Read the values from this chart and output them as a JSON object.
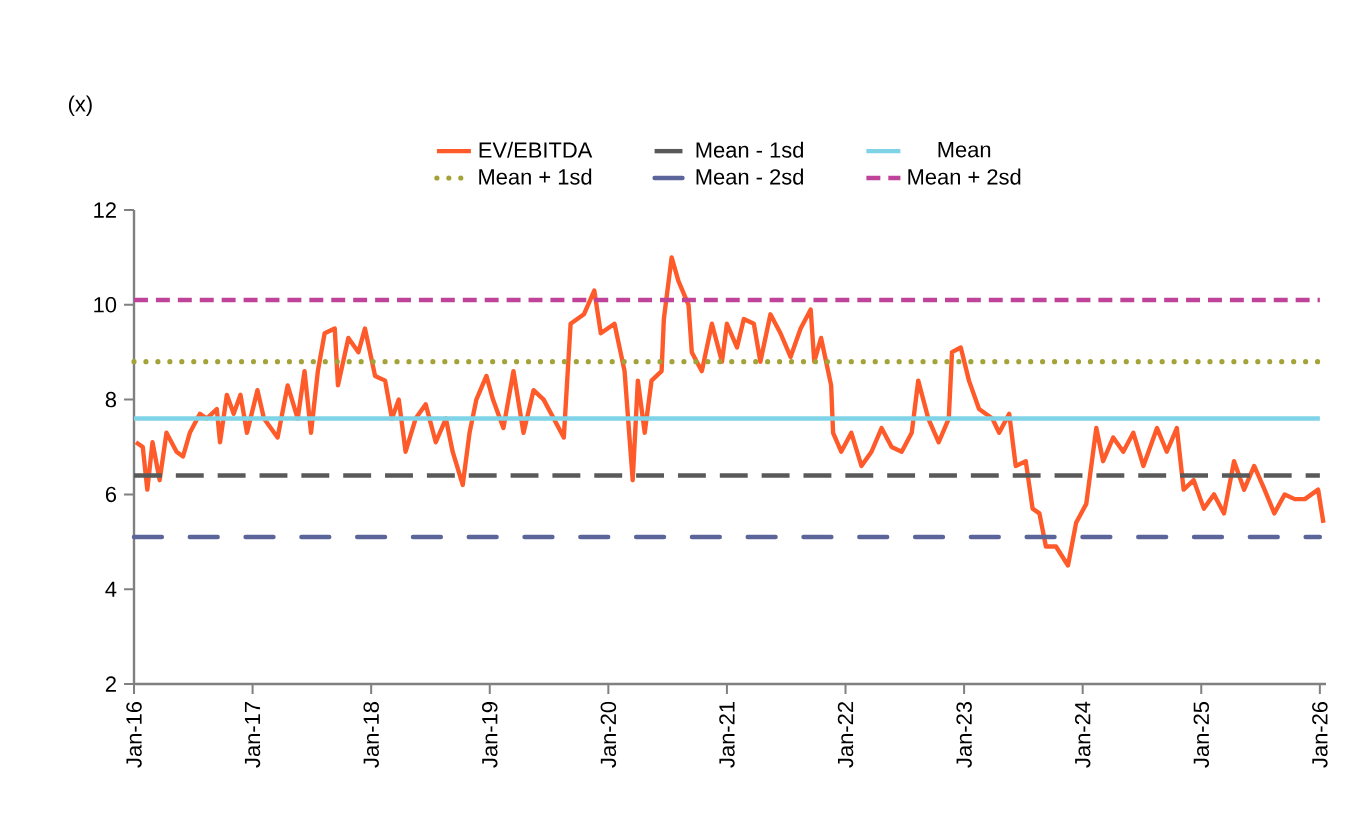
{
  "chart_data": {
    "type": "line",
    "ylabel": "(x)",
    "legend": "top",
    "grid": false,
    "xlim": [
      "2016-01-01",
      "2026-01-20"
    ],
    "xticks": [
      {
        "value": "2016-01-01",
        "label": "Jan-16"
      },
      {
        "value": "2017-01-01",
        "label": "Jan-17"
      },
      {
        "value": "2018-01-01",
        "label": "Jan-18"
      },
      {
        "value": "2019-01-01",
        "label": "Jan-19"
      },
      {
        "value": "2020-01-01",
        "label": "Jan-20"
      },
      {
        "value": "2021-01-01",
        "label": "Jan-21"
      },
      {
        "value": "2022-01-01",
        "label": "Jan-22"
      },
      {
        "value": "2023-01-01",
        "label": "Jan-23"
      },
      {
        "value": "2024-01-01",
        "label": "Jan-24"
      },
      {
        "value": "2025-01-01",
        "label": "Jan-25"
      },
      {
        "value": "2026-01-01",
        "label": "Jan-26"
      }
    ],
    "ylim": [
      2,
      12
    ],
    "yticks": [
      2,
      4,
      6,
      8,
      10,
      12
    ],
    "series": [
      {
        "name": "EV/EBITDA",
        "color": "#ff5a2a",
        "line_style": "solid",
        "x": [
          "2016-01-07",
          "2016-01-28",
          "2016-02-11",
          "2016-02-27",
          "2016-03-20",
          "2016-04-10",
          "2016-05-11",
          "2016-05-31",
          "2016-06-21",
          "2016-07-22",
          "2016-08-12",
          "2016-09-12",
          "2016-09-22",
          "2016-10-13",
          "2016-11-03",
          "2016-11-24",
          "2016-12-14",
          "2017-01-16",
          "2017-02-05",
          "2017-03-19",
          "2017-04-19",
          "2017-05-20",
          "2017-06-10",
          "2017-06-30",
          "2017-07-21",
          "2017-08-11",
          "2017-09-11",
          "2017-09-21",
          "2017-10-23",
          "2017-11-23",
          "2017-12-13",
          "2018-01-13",
          "2018-02-13",
          "2018-03-06",
          "2018-03-27",
          "2018-04-17",
          "2018-05-18",
          "2018-06-18",
          "2018-07-19",
          "2018-08-19",
          "2018-09-09",
          "2018-10-10",
          "2018-10-31",
          "2018-11-21",
          "2018-12-22",
          "2019-01-11",
          "2019-02-12",
          "2019-03-15",
          "2019-04-15",
          "2019-05-16",
          "2019-06-16",
          "2019-07-17",
          "2019-08-17",
          "2019-09-07",
          "2019-10-18",
          "2019-11-19",
          "2019-12-09",
          "2020-01-20",
          "2020-02-20",
          "2020-03-16",
          "2020-04-01",
          "2020-04-22",
          "2020-05-13",
          "2020-06-13",
          "2020-06-20",
          "2020-07-14",
          "2020-08-04",
          "2020-09-04",
          "2020-09-14",
          "2020-10-15",
          "2020-11-15",
          "2020-12-16",
          "2021-01-01",
          "2021-02-01",
          "2021-02-22",
          "2021-03-25",
          "2021-04-14",
          "2021-05-15",
          "2021-06-15",
          "2021-07-16",
          "2021-08-16",
          "2021-09-16",
          "2021-09-27",
          "2021-10-18",
          "2021-11-18",
          "2021-11-24",
          "2021-12-19",
          "2022-01-19",
          "2022-02-19",
          "2022-03-22",
          "2022-04-22",
          "2022-05-23",
          "2022-06-23",
          "2022-07-24",
          "2022-08-13",
          "2022-09-13",
          "2022-10-15",
          "2022-11-15",
          "2022-11-25",
          "2022-12-22",
          "2023-01-16",
          "2023-02-16",
          "2023-03-29",
          "2023-04-19",
          "2023-05-20",
          "2023-06-09",
          "2023-07-10",
          "2023-07-31",
          "2023-08-21",
          "2023-09-10",
          "2023-10-11",
          "2023-11-17",
          "2023-12-12",
          "2024-01-12",
          "2024-02-12",
          "2024-03-04",
          "2024-04-04",
          "2024-05-05",
          "2024-06-05",
          "2024-07-06",
          "2024-08-17",
          "2024-09-16",
          "2024-10-17",
          "2024-11-07",
          "2024-12-08",
          "2025-01-09",
          "2025-02-09",
          "2025-03-12",
          "2025-04-12",
          "2025-05-13",
          "2025-06-13",
          "2025-07-15",
          "2025-08-14",
          "2025-09-15",
          "2025-10-16",
          "2025-11-16",
          "2025-12-27",
          "2026-01-12"
        ],
        "values": [
          7.1,
          7.0,
          6.1,
          7.1,
          6.3,
          7.3,
          6.9,
          6.8,
          7.3,
          7.7,
          7.6,
          7.8,
          7.1,
          8.1,
          7.7,
          8.1,
          7.3,
          8.2,
          7.6,
          7.2,
          8.3,
          7.6,
          8.6,
          7.3,
          8.6,
          9.4,
          9.5,
          8.3,
          9.3,
          9.0,
          9.5,
          8.5,
          8.4,
          7.6,
          8.0,
          6.9,
          7.6,
          7.9,
          7.1,
          7.6,
          6.9,
          6.2,
          7.3,
          8.0,
          8.5,
          8.0,
          7.4,
          8.6,
          7.3,
          8.2,
          8.0,
          7.6,
          7.2,
          9.6,
          9.8,
          10.3,
          9.4,
          9.6,
          8.6,
          6.3,
          8.4,
          7.3,
          8.4,
          8.6,
          9.7,
          11.0,
          10.5,
          10.0,
          9.0,
          8.6,
          9.6,
          8.8,
          9.6,
          9.1,
          9.7,
          9.6,
          8.8,
          9.8,
          9.4,
          8.9,
          9.5,
          9.9,
          8.8,
          9.3,
          8.3,
          7.3,
          6.9,
          7.3,
          6.6,
          6.9,
          7.4,
          7.0,
          6.9,
          7.3,
          8.4,
          7.6,
          7.1,
          7.6,
          9.0,
          9.1,
          8.4,
          7.8,
          7.6,
          7.3,
          7.7,
          6.6,
          6.7,
          5.7,
          5.6,
          4.9,
          4.9,
          4.5,
          5.4,
          5.8,
          7.4,
          6.7,
          7.2,
          6.9,
          7.3,
          6.6,
          7.4,
          6.9,
          7.4,
          6.1,
          6.3,
          5.7,
          6.0,
          5.6,
          6.7,
          6.1,
          6.6,
          6.1,
          5.6,
          6.0,
          5.9,
          5.9,
          6.1,
          5.4
        ]
      },
      {
        "name": "Mean - 1sd",
        "color": "#595959",
        "line_style": "longdash",
        "x": [
          "2016-01-01",
          "2026-01-01"
        ],
        "values": [
          6.4,
          6.4
        ]
      },
      {
        "name": "Mean",
        "color": "#7fd3e6",
        "line_style": "solid",
        "x": [
          "2016-01-01",
          "2026-01-01"
        ],
        "values": [
          7.6,
          7.6
        ]
      },
      {
        "name": "Mean + 1sd",
        "color": "#a3a33a",
        "line_style": "dotted",
        "x": [
          "2016-01-01",
          "2026-01-01"
        ],
        "values": [
          8.8,
          8.8
        ]
      },
      {
        "name": "Mean - 2sd",
        "color": "#5c6599",
        "line_style": "dashdot",
        "x": [
          "2016-01-01",
          "2026-01-01"
        ],
        "values": [
          5.1,
          5.1
        ]
      },
      {
        "name": "Mean + 2sd",
        "color": "#c0439a",
        "line_style": "dashed",
        "x": [
          "2016-01-01",
          "2026-01-01"
        ],
        "values": [
          10.1,
          10.1
        ]
      }
    ]
  }
}
